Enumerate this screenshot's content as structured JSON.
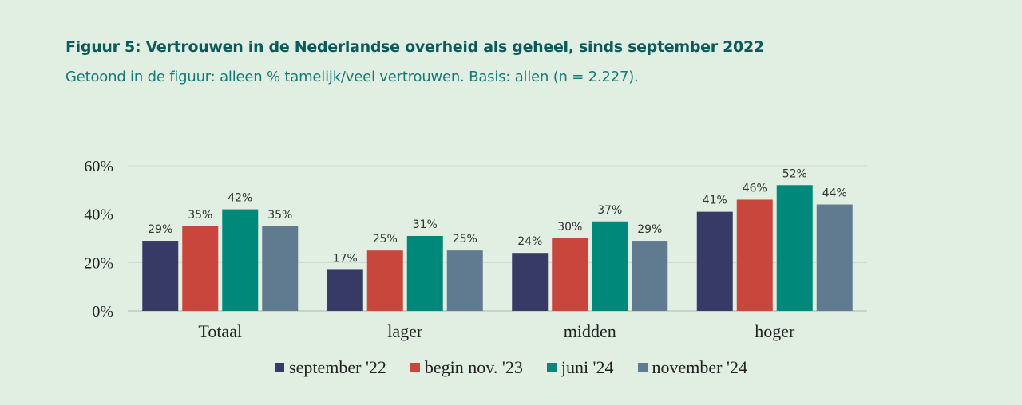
{
  "figure": {
    "title": "Figuur 5: Vertrouwen in de Nederlandse overheid als geheel, sinds september 2022",
    "subtitle": "Getoond in de figuur: alleen % tamelijk/veel vertrouwen. Basis: allen (n = 2.227)."
  },
  "chart_data": {
    "type": "bar",
    "categories": [
      "Totaal",
      "lager",
      "midden",
      "hoger"
    ],
    "series": [
      {
        "name": "september '22",
        "color": "#363a65",
        "values": [
          29,
          17,
          24,
          41
        ]
      },
      {
        "name": "begin nov. '23",
        "color": "#c9463d",
        "values": [
          35,
          25,
          30,
          46
        ]
      },
      {
        "name": "juni '24",
        "color": "#00897b",
        "values": [
          42,
          31,
          37,
          52
        ]
      },
      {
        "name": "november '24",
        "color": "#607b8f",
        "values": [
          35,
          25,
          29,
          44
        ]
      }
    ],
    "data_labels": [
      [
        "29%",
        "17%",
        "24%",
        "41%"
      ],
      [
        "35%",
        "25%",
        "30%",
        "46%"
      ],
      [
        "42%",
        "31%",
        "37%",
        "52%"
      ],
      [
        "35%",
        "25%",
        "29%",
        "44%"
      ]
    ],
    "y_ticks": [
      0,
      20,
      40,
      60
    ],
    "y_tick_labels": [
      "0%",
      "20%",
      "40%",
      "60%"
    ],
    "ylim": [
      0,
      60
    ],
    "grid": true,
    "legend_position": "bottom",
    "xlabel": "",
    "ylabel": ""
  }
}
